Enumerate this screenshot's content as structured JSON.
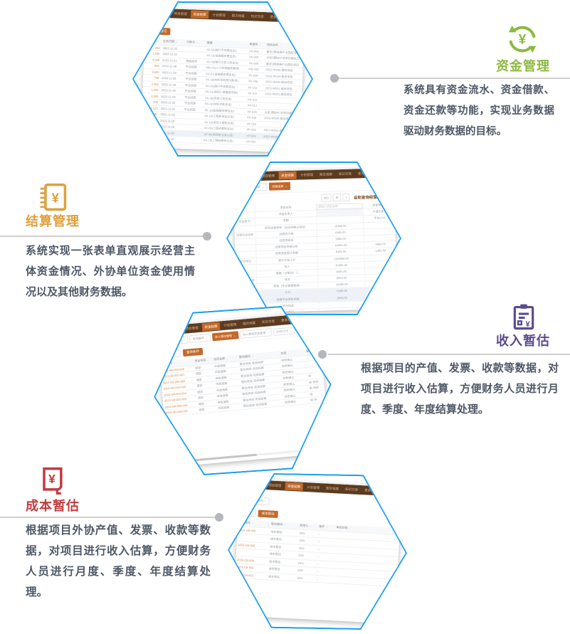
{
  "colors": {
    "hex_border_blue": "#1b9ff1",
    "fund_green": "#8cba3e",
    "settle_orange": "#dfa03c",
    "income_purple": "#5c4b8e",
    "cost_red": "#c23b3e",
    "nav_brown": "#5d3b20",
    "button_orange": "#c4692a",
    "desc_gray": "#4e5866",
    "connector_gray": "#cfcfcf"
  },
  "sections": {
    "fund": {
      "title": "资金管理",
      "icon": "yuan-cycle-icon",
      "desc": "系统具有资金流水、资金借款、资金还款等功能，实现业务数据驱动财务数据的目标。"
    },
    "settle": {
      "title": "结算管理",
      "icon": "ledger-yuan-icon",
      "desc": "系统实现一张表单直观展示经营主体资金情况、外协单位资金使用情况以及其他财务数据。"
    },
    "income": {
      "title": "收入暂估",
      "icon": "clipboard-yuan-icon",
      "desc": "根据项目的产值、发票、收款等数据，对项目进行收入估算，方便财务人员进行月度、季度、年度结算处理。"
    },
    "cost": {
      "title": "成本暂估",
      "icon": "receipt-yuan-icon",
      "desc": "根据项目外协产值、发票、收款等数据，对项目进行收入估算，方便财务人员进行月度、季度、年度结算处理。"
    }
  },
  "app": {
    "nav": [
      {
        "label": "机构结算",
        "active": false
      },
      {
        "label": "项目管理",
        "active": false
      },
      {
        "label": "资金结算",
        "active": true
      },
      {
        "label": "计划管理",
        "active": false
      },
      {
        "label": "图文档案",
        "active": false
      },
      {
        "label": "知识文库",
        "active": false
      },
      {
        "label": "更多功能",
        "active": false
      }
    ],
    "shot1": {
      "button": "新增登记",
      "headers": [
        "金额(元)",
        "业务日期",
        "付款方",
        "摘要",
        "单据号",
        "项目名称",
        "备注"
      ],
      "rows": [
        [
          "450",
          "2023-12-22",
          "",
          "XK-05(银行手续费支出)",
          "XK-006",
          "重庆3期发展产业园区项目",
          ""
        ],
        [
          "1,200",
          "2023-12-22",
          "",
          "XK-10(金融服务费支出)",
          "XK-026",
          "大足3期EPC总承包建设工程",
          ""
        ],
        [
          "4,350",
          "2023-12-21",
          "限额结转",
          "XK-09(银行代发工资支出)",
          "XK-008",
          "重庆3期发展产业园区项目",
          ""
        ],
        [
          "820",
          "2023-11-28",
          "平台结算",
          "MQ-03(人力资源服务费用)",
          "MQ-051",
          "2023-W206-建设项目",
          "2301"
        ],
        [
          "9,600",
          "2023-11-28",
          "平台结算",
          "XK-07(金融服务费支出)",
          "XK-028",
          "2023-W204-建设项目",
          "2301"
        ],
        [
          "750",
          "2023-11-28",
          "平台结算",
          "XK-06(材料采购预付款项)",
          "XK-046",
          "2023-W206-建设项目",
          "2301-6"
        ],
        [
          "2,480",
          "2023-11-28",
          "平台结算",
          "XK-05(银行手续费支出)",
          "XK-011",
          "2023-W201-建设项目",
          "2301-8"
        ],
        [
          "1,060",
          "2023-11-28",
          "平台结算",
          "XK-01(退回小微服务贷款)",
          "XK-011",
          "2023-W201-建设项目",
          "2301-0"
        ],
        [
          "3,900",
          "2023-11-28",
          "平台结算",
          "XK-05(劳务工资支出)",
          "XK-013",
          "",
          ""
        ],
        [
          "640",
          "2023-11-28",
          "平台结算",
          "XK-02(材料货款支出)",
          "XK-013",
          "",
          ""
        ],
        [
          "5,210",
          "2023-11-28",
          "平台结算",
          "XK-10(金融服务费支出)",
          "XK-026",
          "大足3期EPC总承包建设工程",
          "2301"
        ],
        [
          "980",
          "2023-11-28",
          "",
          "XK-10(工程质保金支出)",
          "XK-018",
          "2023-W205-建设项目",
          "2301-2"
        ],
        [
          "1,730",
          "2023-11-28",
          "",
          "XK-10(项目工程款支出)",
          "XK-010",
          "",
          ""
        ],
        [
          "2,150",
          "2023-11-28",
          "",
          "XK-09(工程进度款支出)",
          "XK-052",
          "2023-W204-建设项目",
          "2301-4"
        ],
        [
          "860",
          "2023-11-28",
          "",
          "XP-09(退回余业务公资)",
          "XP-008",
          "2023-W004-建设项目",
          ""
        ],
        [
          "540",
          "2023-11-28",
          "",
          "XK-10(工程结算转公后)",
          "XK-052",
          "",
          ""
        ]
      ]
    },
    "shot2": {
      "select1": "经营结算查询表",
      "select2": "经营结算",
      "period": [
        "300",
        "年",
        "1"
      ],
      "title": "自助查询经营资金表",
      "rows": [
        [
          "",
          "项目名称",
          "请输入项目名称",
          "经营单位时"
        ],
        [
          "",
          "项目负责人",
          "",
          "产值负责人"
        ],
        [
          "资金概况",
          "本期",
          "",
          "平台小计"
        ],
        [
          "",
          "项目运营周转（含应收确认项目）",
          "10485.00",
          ""
        ],
        [
          "经营收支核算",
          "经营性产值",
          "8485.00",
          ""
        ],
        [
          "",
          "经营净现金",
          "9963.00",
          ""
        ],
        [
          "",
          "经营资金余额分析",
          "10485.00",
          "3985.00"
        ],
        [
          "",
          "经营资金累计余额",
          "8485.00",
          "1485.00"
        ],
        [
          "外协单位",
          "累计交易小计",
          "1158965.00",
          ""
        ],
        [
          "",
          "收入",
          "10485.00",
          ""
        ],
        [
          "",
          "票据（含暂估）人",
          "8485.00",
          ""
        ],
        [
          "项目成本核算",
          "成本",
          "9963.00",
          ""
        ],
        [
          "",
          "其他（平台管理费用）",
          "10485.00",
          ""
        ],
        [
          "",
          "小计",
          "8485.00",
          ""
        ],
        [
          "",
          "结算平台资金余额",
          "9963.00",
          ""
        ],
        [
          "",
          "平台信息",
          "",
          ""
        ],
        [
          "",
          "平台费用",
          "",
          ""
        ]
      ]
    },
    "shot3": {
      "filters": [
        {
          "label": "项目名称搜索",
          "active": false
        },
        {
          "label": "合同编号",
          "active": false
        },
        {
          "label": "收入暂估管理",
          "active": true
        },
        {
          "label": "收入暂估状态查询",
          "active": false
        },
        {
          "label": "2023-075",
          "active": false
        }
      ],
      "button": "查询条件",
      "headers": [
        "单据编号",
        "项目名称",
        "合同金额",
        "暂估期间",
        "状态",
        "备注"
      ],
      "rows": [
        [
          "2023-SR-003-008",
          "城投",
          "市政道路",
          "暂估完成·完成核算",
          "财务确认",
          ""
        ],
        [
          "2023-SR-003-007",
          "城投",
          "市政道路",
          "暂估完成·完成核算",
          "财务确认",
          ""
        ],
        [
          "2023-SR-003-006",
          "城投",
          "市政道路",
          "暂估完成·完成核算",
          "财务确认",
          ""
        ],
        [
          "2023-SR-003-005",
          "城投",
          "市政道路",
          "暂估完成·完成核算",
          "财务确认",
          "收"
        ],
        [
          "2023-SR-003-004",
          "城投",
          "市政道路",
          "暂估完成·完成核算",
          "财务确认",
          "收·完成"
        ],
        [
          "2023-SR-003-003",
          "城投",
          "市政道路",
          "暂估完成·完成核算",
          "财务确认",
          "收·完成"
        ],
        [
          "2023-SR-003-002",
          "城投",
          "市政道路",
          "暂估完成·完成核算",
          "财务确认",
          "收"
        ],
        [
          "2023-SR-003-001",
          "城投",
          "市政道路",
          "暂估完成·完成核算",
          "财务确认",
          "收·完"
        ]
      ]
    },
    "shot4": {
      "select": "全部项目查询",
      "button": "成本暂估",
      "headers": [
        "单据编号",
        "暂估期间",
        "税率%",
        "操作",
        "审批状态"
      ],
      "rows": [
        [
          "2023-CB-008",
          "成本暂估",
          "20%",
          "--",
          ""
        ],
        [
          "",
          "成本暂估",
          "20%",
          "--",
          ""
        ],
        [
          "2023-CB-006",
          "成本暂估",
          "20%",
          "--",
          ""
        ],
        [
          "",
          "成本暂估",
          "20%",
          "--",
          ""
        ],
        [
          "2023-CB-004",
          "成本暂估",
          "20%",
          "--",
          ""
        ],
        [
          "2023-CB-003",
          "成本暂估",
          "20%",
          "--",
          ""
        ],
        [
          "2023-CB-002",
          "成本暂估",
          "20%",
          "--",
          ""
        ]
      ]
    }
  }
}
